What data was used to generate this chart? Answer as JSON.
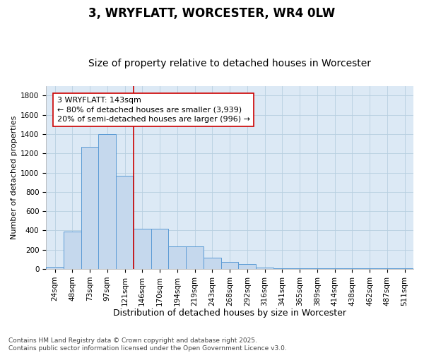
{
  "title": "3, WRYFLATT, WORCESTER, WR4 0LW",
  "subtitle": "Size of property relative to detached houses in Worcester",
  "xlabel": "Distribution of detached houses by size in Worcester",
  "ylabel": "Number of detached properties",
  "categories": [
    "24sqm",
    "48sqm",
    "73sqm",
    "97sqm",
    "121sqm",
    "146sqm",
    "170sqm",
    "194sqm",
    "219sqm",
    "243sqm",
    "268sqm",
    "292sqm",
    "316sqm",
    "341sqm",
    "365sqm",
    "389sqm",
    "414sqm",
    "438sqm",
    "462sqm",
    "487sqm",
    "511sqm"
  ],
  "values": [
    25,
    390,
    1265,
    1400,
    965,
    420,
    420,
    235,
    235,
    115,
    70,
    50,
    15,
    10,
    10,
    5,
    5,
    5,
    5,
    5,
    5
  ],
  "bar_color": "#c5d8ed",
  "bar_edge_color": "#5b9bd5",
  "vline_x_index": 5,
  "vline_color": "#cc0000",
  "annotation_text": "3 WRYFLATT: 143sqm\n← 80% of detached houses are smaller (3,939)\n20% of semi-detached houses are larger (996) →",
  "annotation_box_facecolor": "#ffffff",
  "annotation_box_edgecolor": "#cc0000",
  "ylim": [
    0,
    1900
  ],
  "yticks": [
    0,
    200,
    400,
    600,
    800,
    1000,
    1200,
    1400,
    1600,
    1800
  ],
  "grid_color": "#b8cfe0",
  "plot_bg_color": "#dce9f5",
  "fig_bg_color": "#ffffff",
  "footnote": "Contains HM Land Registry data © Crown copyright and database right 2025.\nContains public sector information licensed under the Open Government Licence v3.0.",
  "title_fontsize": 12,
  "subtitle_fontsize": 10,
  "xlabel_fontsize": 9,
  "ylabel_fontsize": 8,
  "tick_fontsize": 7.5,
  "annotation_fontsize": 8,
  "footnote_fontsize": 6.5
}
